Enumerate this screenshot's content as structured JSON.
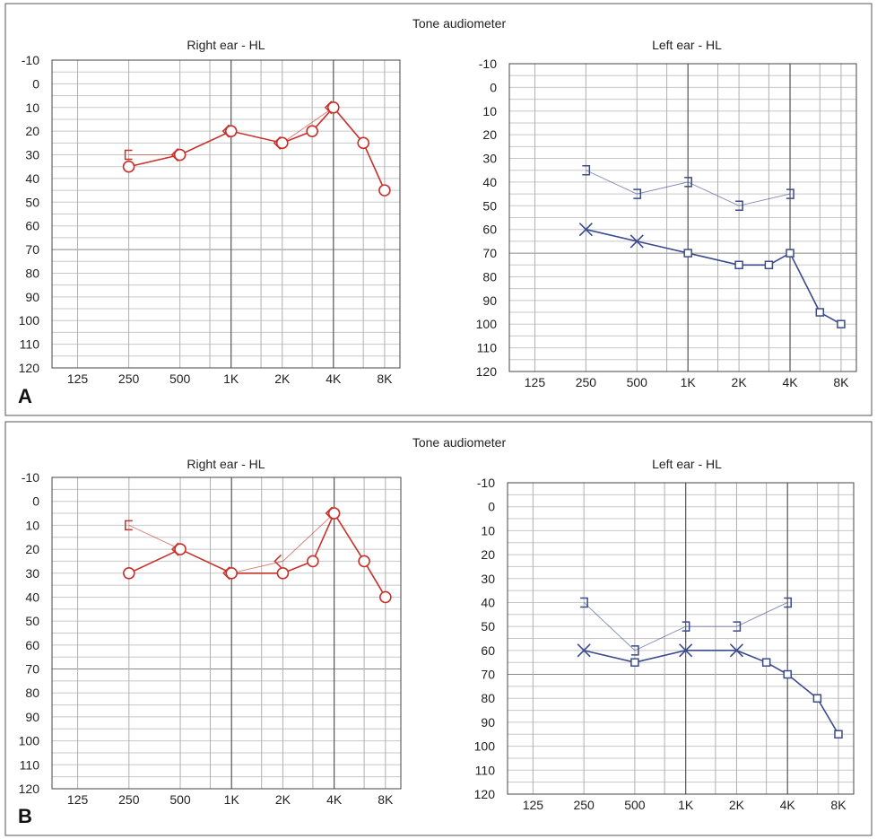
{
  "panels": [
    {
      "label": "A",
      "title": "Tone audiometer",
      "charts": [
        {
          "title": "Right ear - HL",
          "ear": "right",
          "color": "#c8302a",
          "lines": [
            {
              "name": "air conduction",
              "style": "solid",
              "points": [
                {
                  "x": 250,
                  "y": 35,
                  "marker": "circle"
                },
                {
                  "x": 500,
                  "y": 30,
                  "marker": "circle"
                },
                {
                  "x": 1000,
                  "y": 20,
                  "marker": "circle"
                },
                {
                  "x": 2000,
                  "y": 25,
                  "marker": "circle"
                },
                {
                  "x": 3000,
                  "y": 20,
                  "marker": "circle"
                },
                {
                  "x": 4000,
                  "y": 10,
                  "marker": "circle"
                },
                {
                  "x": 6000,
                  "y": 25,
                  "marker": "circle"
                },
                {
                  "x": 8000,
                  "y": 45,
                  "marker": "circle"
                }
              ]
            },
            {
              "name": "bone conduction",
              "style": "thin",
              "points": [
                {
                  "x": 250,
                  "y": 30,
                  "marker": "bracket"
                },
                {
                  "x": 500,
                  "y": 30,
                  "marker": "angle"
                },
                {
                  "x": 1000,
                  "y": 20,
                  "marker": "angle"
                },
                {
                  "x": 2000,
                  "y": 25,
                  "marker": "angle"
                },
                {
                  "x": 4000,
                  "y": 10,
                  "marker": "angle"
                }
              ]
            }
          ]
        },
        {
          "title": "Left ear - HL",
          "ear": "left",
          "color": "#3a4a8c",
          "lines": [
            {
              "name": "air conduction",
              "style": "solid",
              "points": [
                {
                  "x": 250,
                  "y": 60,
                  "marker": "x"
                },
                {
                  "x": 500,
                  "y": 65,
                  "marker": "x"
                },
                {
                  "x": 1000,
                  "y": 70,
                  "marker": "square"
                },
                {
                  "x": 2000,
                  "y": 75,
                  "marker": "square"
                },
                {
                  "x": 3000,
                  "y": 75,
                  "marker": "square"
                },
                {
                  "x": 4000,
                  "y": 70,
                  "marker": "square"
                },
                {
                  "x": 6000,
                  "y": 95,
                  "marker": "square"
                },
                {
                  "x": 8000,
                  "y": 100,
                  "marker": "square"
                }
              ]
            },
            {
              "name": "bone conduction",
              "style": "thin",
              "points": [
                {
                  "x": 250,
                  "y": 35,
                  "marker": "bracket"
                },
                {
                  "x": 500,
                  "y": 45,
                  "marker": "bracket"
                },
                {
                  "x": 1000,
                  "y": 40,
                  "marker": "bracket"
                },
                {
                  "x": 2000,
                  "y": 50,
                  "marker": "bracket"
                },
                {
                  "x": 4000,
                  "y": 45,
                  "marker": "bracket"
                }
              ]
            }
          ]
        }
      ]
    },
    {
      "label": "B",
      "title": "Tone audiometer",
      "charts": [
        {
          "title": "Right ear - HL",
          "ear": "right",
          "color": "#c8302a",
          "lines": [
            {
              "name": "air conduction",
              "style": "solid",
              "points": [
                {
                  "x": 250,
                  "y": 30,
                  "marker": "circle"
                },
                {
                  "x": 500,
                  "y": 20,
                  "marker": "circle"
                },
                {
                  "x": 1000,
                  "y": 30,
                  "marker": "circle"
                },
                {
                  "x": 2000,
                  "y": 30,
                  "marker": "circle"
                },
                {
                  "x": 3000,
                  "y": 25,
                  "marker": "circle"
                },
                {
                  "x": 4000,
                  "y": 5,
                  "marker": "circle"
                },
                {
                  "x": 6000,
                  "y": 25,
                  "marker": "circle"
                },
                {
                  "x": 8000,
                  "y": 40,
                  "marker": "circle"
                }
              ]
            },
            {
              "name": "bone conduction",
              "style": "thin",
              "points": [
                {
                  "x": 250,
                  "y": 10,
                  "marker": "bracket"
                },
                {
                  "x": 500,
                  "y": 20,
                  "marker": "angle"
                },
                {
                  "x": 1000,
                  "y": 30,
                  "marker": "angle"
                },
                {
                  "x": 2000,
                  "y": 25,
                  "marker": "angle"
                },
                {
                  "x": 4000,
                  "y": 5,
                  "marker": "angle"
                }
              ]
            }
          ]
        },
        {
          "title": "Left ear - HL",
          "ear": "left",
          "color": "#3a4a8c",
          "lines": [
            {
              "name": "air conduction",
              "style": "solid",
              "points": [
                {
                  "x": 250,
                  "y": 60,
                  "marker": "x"
                },
                {
                  "x": 500,
                  "y": 65,
                  "marker": "square"
                },
                {
                  "x": 1000,
                  "y": 60,
                  "marker": "x"
                },
                {
                  "x": 2000,
                  "y": 60,
                  "marker": "x"
                },
                {
                  "x": 3000,
                  "y": 65,
                  "marker": "square"
                },
                {
                  "x": 4000,
                  "y": 70,
                  "marker": "square"
                },
                {
                  "x": 6000,
                  "y": 80,
                  "marker": "square"
                },
                {
                  "x": 8000,
                  "y": 95,
                  "marker": "square"
                }
              ]
            },
            {
              "name": "bone conduction",
              "style": "thin",
              "points": [
                {
                  "x": 250,
                  "y": 40,
                  "marker": "bracket"
                },
                {
                  "x": 500,
                  "y": 60,
                  "marker": "bracket"
                },
                {
                  "x": 1000,
                  "y": 50,
                  "marker": "bracket"
                },
                {
                  "x": 2000,
                  "y": 50,
                  "marker": "bracket"
                },
                {
                  "x": 4000,
                  "y": 40,
                  "marker": "bracket"
                }
              ]
            }
          ]
        }
      ]
    }
  ],
  "chart_data": {
    "type": "line",
    "x_ticks": [
      {
        "value": 125,
        "label": "125"
      },
      {
        "value": 250,
        "label": "250"
      },
      {
        "value": 500,
        "label": "500"
      },
      {
        "value": 1000,
        "label": "1K"
      },
      {
        "value": 2000,
        "label": "2K"
      },
      {
        "value": 4000,
        "label": "4K"
      },
      {
        "value": 8000,
        "label": "8K"
      }
    ],
    "y_ticks": [
      -10,
      0,
      10,
      20,
      30,
      40,
      50,
      60,
      70,
      80,
      90,
      100,
      110,
      120
    ],
    "ylim": [
      -10,
      120
    ],
    "y_inverted": true,
    "x_scale": "log",
    "xlabel": "",
    "ylabel": ""
  }
}
